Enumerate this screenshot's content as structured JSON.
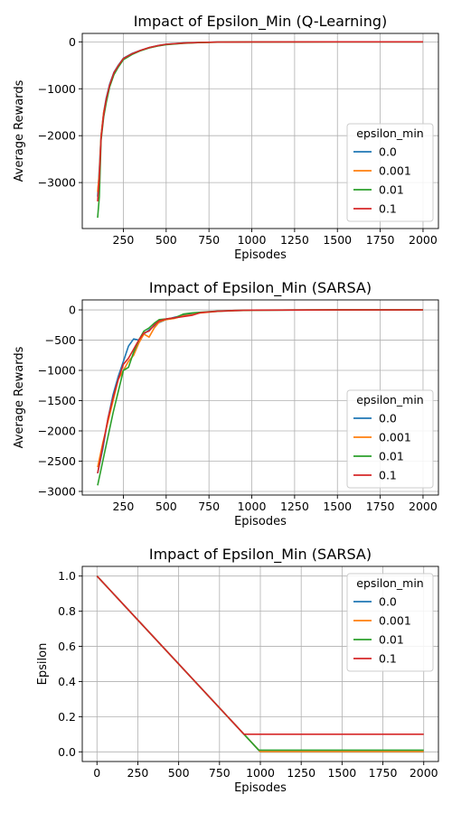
{
  "chart_data": [
    {
      "type": "line",
      "title": "Impact of Epsilon_Min (Q-Learning)",
      "xlabel": "Episodes",
      "ylabel": "Average Rewards",
      "xlim": [
        10,
        2090
      ],
      "ylim": [
        -3980,
        180
      ],
      "xticks": [
        250,
        500,
        750,
        1000,
        1250,
        1500,
        1750,
        2000
      ],
      "yticks": [
        -3000,
        -2000,
        -1000,
        0
      ],
      "grid": true,
      "legend": {
        "title": "epsilon_min",
        "placement": "center-right",
        "entries": [
          "0.0",
          "0.001",
          "0.01",
          "0.1"
        ]
      },
      "series": [
        {
          "name": "0.0",
          "color": "#1f77b4",
          "points": [
            [
              100,
              -3300
            ],
            [
              110,
              -2700
            ],
            [
              120,
              -2000
            ],
            [
              135,
              -1500
            ],
            [
              150,
              -1200
            ],
            [
              170,
              -900
            ],
            [
              195,
              -650
            ],
            [
              220,
              -500
            ],
            [
              250,
              -350
            ],
            [
              300,
              -250
            ],
            [
              350,
              -180
            ],
            [
              400,
              -120
            ],
            [
              450,
              -80
            ],
            [
              500,
              -50
            ],
            [
              600,
              -25
            ],
            [
              700,
              -12
            ],
            [
              800,
              -5
            ],
            [
              1000,
              -2
            ],
            [
              1500,
              0
            ],
            [
              2000,
              0
            ]
          ]
        },
        {
          "name": "0.001",
          "color": "#ff7f0e",
          "points": [
            [
              100,
              -3200
            ],
            [
              110,
              -2800
            ],
            [
              120,
              -2000
            ],
            [
              135,
              -1500
            ],
            [
              150,
              -1250
            ],
            [
              170,
              -950
            ],
            [
              195,
              -680
            ],
            [
              220,
              -520
            ],
            [
              250,
              -360
            ],
            [
              300,
              -260
            ],
            [
              350,
              -185
            ],
            [
              400,
              -125
            ],
            [
              450,
              -85
            ],
            [
              500,
              -55
            ],
            [
              600,
              -28
            ],
            [
              700,
              -14
            ],
            [
              800,
              -6
            ],
            [
              1000,
              -2
            ],
            [
              1500,
              0
            ],
            [
              2000,
              0
            ]
          ]
        },
        {
          "name": "0.01",
          "color": "#2ca02c",
          "points": [
            [
              100,
              -3750
            ],
            [
              110,
              -3300
            ],
            [
              120,
              -2100
            ],
            [
              135,
              -1600
            ],
            [
              150,
              -1300
            ],
            [
              170,
              -960
            ],
            [
              195,
              -700
            ],
            [
              220,
              -540
            ],
            [
              250,
              -380
            ],
            [
              300,
              -270
            ],
            [
              350,
              -190
            ],
            [
              400,
              -130
            ],
            [
              450,
              -90
            ],
            [
              500,
              -58
            ],
            [
              600,
              -30
            ],
            [
              700,
              -15
            ],
            [
              800,
              -7
            ],
            [
              1000,
              -2
            ],
            [
              1500,
              0
            ],
            [
              2000,
              0
            ]
          ]
        },
        {
          "name": "0.1",
          "color": "#d62728",
          "points": [
            [
              100,
              -3400
            ],
            [
              110,
              -2900
            ],
            [
              120,
              -2050
            ],
            [
              135,
              -1550
            ],
            [
              150,
              -1220
            ],
            [
              170,
              -920
            ],
            [
              195,
              -660
            ],
            [
              220,
              -510
            ],
            [
              250,
              -355
            ],
            [
              300,
              -255
            ],
            [
              350,
              -182
            ],
            [
              400,
              -122
            ],
            [
              450,
              -82
            ],
            [
              500,
              -52
            ],
            [
              600,
              -26
            ],
            [
              700,
              -13
            ],
            [
              800,
              -5
            ],
            [
              1000,
              -2
            ],
            [
              1500,
              0
            ],
            [
              2000,
              0
            ]
          ]
        }
      ]
    },
    {
      "type": "line",
      "title": "Impact of Epsilon_Min (SARSA)",
      "xlabel": "Episodes",
      "ylabel": "Average Rewards",
      "xlim": [
        10,
        2090
      ],
      "ylim": [
        -3060,
        165
      ],
      "xticks": [
        250,
        500,
        750,
        1000,
        1250,
        1500,
        1750,
        2000
      ],
      "yticks": [
        -3000,
        -2500,
        -2000,
        -1500,
        -1000,
        -500,
        0
      ],
      "grid": true,
      "legend": {
        "title": "epsilon_min",
        "placement": "center-right",
        "entries": [
          "0.0",
          "0.001",
          "0.01",
          "0.1"
        ]
      },
      "series": [
        {
          "name": "0.0",
          "color": "#1f77b4",
          "points": [
            [
              100,
              -2700
            ],
            [
              130,
              -2300
            ],
            [
              160,
              -1800
            ],
            [
              190,
              -1400
            ],
            [
              220,
              -1100
            ],
            [
              250,
              -850
            ],
            [
              280,
              -600
            ],
            [
              310,
              -480
            ],
            [
              340,
              -500
            ],
            [
              370,
              -400
            ],
            [
              400,
              -330
            ],
            [
              450,
              -220
            ],
            [
              500,
              -160
            ],
            [
              550,
              -120
            ],
            [
              600,
              -90
            ],
            [
              650,
              -70
            ],
            [
              700,
              -45
            ],
            [
              800,
              -25
            ],
            [
              900,
              -12
            ],
            [
              1000,
              -5
            ],
            [
              1500,
              0
            ],
            [
              2000,
              0
            ]
          ]
        },
        {
          "name": "0.001",
          "color": "#ff7f0e",
          "points": [
            [
              100,
              -2600
            ],
            [
              130,
              -2200
            ],
            [
              160,
              -1850
            ],
            [
              190,
              -1500
            ],
            [
              220,
              -1150
            ],
            [
              250,
              -1000
            ],
            [
              280,
              -850
            ],
            [
              310,
              -750
            ],
            [
              340,
              -550
            ],
            [
              370,
              -400
            ],
            [
              400,
              -450
            ],
            [
              430,
              -300
            ],
            [
              460,
              -200
            ],
            [
              500,
              -160
            ],
            [
              550,
              -140
            ],
            [
              600,
              -100
            ],
            [
              650,
              -80
            ],
            [
              700,
              -50
            ],
            [
              800,
              -25
            ],
            [
              900,
              -12
            ],
            [
              1000,
              -5
            ],
            [
              1500,
              0
            ],
            [
              2000,
              0
            ]
          ]
        },
        {
          "name": "0.01",
          "color": "#2ca02c",
          "points": [
            [
              100,
              -2900
            ],
            [
              130,
              -2500
            ],
            [
              160,
              -2100
            ],
            [
              190,
              -1700
            ],
            [
              220,
              -1350
            ],
            [
              250,
              -1000
            ],
            [
              280,
              -950
            ],
            [
              310,
              -700
            ],
            [
              340,
              -500
            ],
            [
              370,
              -350
            ],
            [
              400,
              -300
            ],
            [
              430,
              -220
            ],
            [
              460,
              -160
            ],
            [
              500,
              -150
            ],
            [
              550,
              -130
            ],
            [
              600,
              -70
            ],
            [
              650,
              -50
            ],
            [
              700,
              -40
            ],
            [
              800,
              -20
            ],
            [
              900,
              -10
            ],
            [
              1000,
              -4
            ],
            [
              1500,
              0
            ],
            [
              2000,
              0
            ]
          ]
        },
        {
          "name": "0.1",
          "color": "#d62728",
          "points": [
            [
              100,
              -2700
            ],
            [
              130,
              -2250
            ],
            [
              160,
              -1800
            ],
            [
              190,
              -1450
            ],
            [
              220,
              -1150
            ],
            [
              250,
              -900
            ],
            [
              280,
              -800
            ],
            [
              310,
              -650
            ],
            [
              340,
              -500
            ],
            [
              370,
              -380
            ],
            [
              400,
              -350
            ],
            [
              430,
              -250
            ],
            [
              460,
              -180
            ],
            [
              500,
              -150
            ],
            [
              550,
              -130
            ],
            [
              600,
              -110
            ],
            [
              650,
              -90
            ],
            [
              700,
              -45
            ],
            [
              800,
              -22
            ],
            [
              900,
              -10
            ],
            [
              1000,
              -4
            ],
            [
              1500,
              0
            ],
            [
              2000,
              0
            ]
          ]
        }
      ]
    },
    {
      "type": "line",
      "title": "Impact of Epsilon_Min (SARSA)",
      "xlabel": "Episodes",
      "ylabel": "Epsilon",
      "xlim": [
        -90,
        2090
      ],
      "ylim": [
        -0.055,
        1.055
      ],
      "xticks": [
        0,
        250,
        500,
        750,
        1000,
        1250,
        1500,
        1750,
        2000
      ],
      "yticks": [
        0.0,
        0.2,
        0.4,
        0.6,
        0.8,
        1.0
      ],
      "grid": true,
      "legend": {
        "title": "epsilon_min",
        "placement": "upper-right",
        "entries": [
          "0.0",
          "0.001",
          "0.01",
          "0.1"
        ]
      },
      "series": [
        {
          "name": "0.0",
          "color": "#1f77b4",
          "points": [
            [
              0,
              1.0
            ],
            [
              1000,
              0.0
            ],
            [
              2000,
              0.0
            ]
          ]
        },
        {
          "name": "0.001",
          "color": "#ff7f0e",
          "points": [
            [
              0,
              1.0
            ],
            [
              999,
              0.001
            ],
            [
              2000,
              0.001
            ]
          ]
        },
        {
          "name": "0.01",
          "color": "#2ca02c",
          "points": [
            [
              0,
              1.0
            ],
            [
              990,
              0.01
            ],
            [
              2000,
              0.01
            ]
          ]
        },
        {
          "name": "0.1",
          "color": "#d62728",
          "points": [
            [
              0,
              1.0
            ],
            [
              900,
              0.1
            ],
            [
              2000,
              0.1
            ]
          ]
        }
      ]
    }
  ]
}
